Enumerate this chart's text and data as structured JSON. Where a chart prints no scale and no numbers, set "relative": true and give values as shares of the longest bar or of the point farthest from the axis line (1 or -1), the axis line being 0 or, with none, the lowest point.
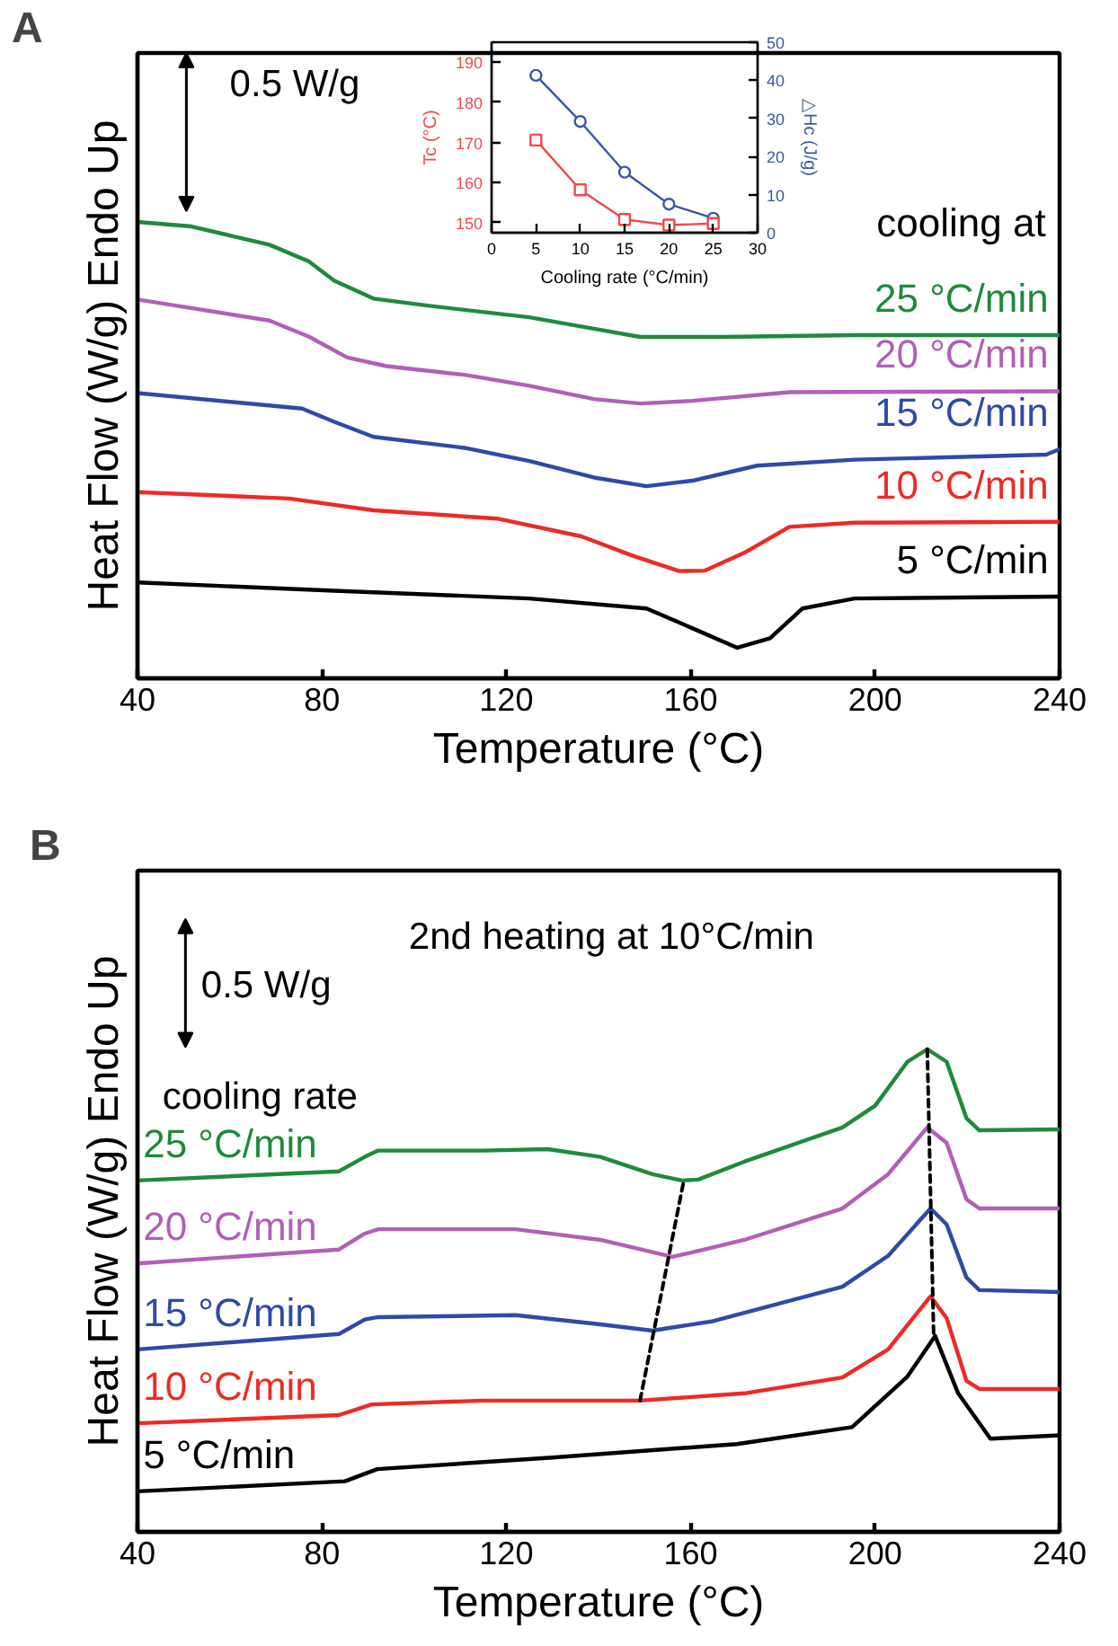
{
  "chart_data": [
    {
      "type": "line",
      "title": "A",
      "xlabel": "Temperature (°C)",
      "ylabel": "Heat Flow (W/g) Endo Up",
      "xlim": [
        40,
        240
      ],
      "xticks": [
        40,
        80,
        120,
        160,
        200,
        240
      ],
      "relative": true,
      "tick_labels": "x",
      "grid": false,
      "legend": false,
      "marker": "none",
      "line_style": "solid",
      "annotations": [
        "0.5 W/g",
        "cooling at"
      ],
      "series": [
        {
          "name": "25 °C/min",
          "color": "#1f8a3c",
          "x": [
            40,
            51.7,
            68.6,
            77.1,
            82.7,
            91.2,
            102.5,
            125,
            139,
            149,
            167,
            195.5,
            240
          ],
          "values": [
            1.0,
            0.99,
            0.95,
            0.914,
            0.871,
            0.832,
            0.817,
            0.791,
            0.766,
            0.748,
            0.748,
            0.752,
            0.752
          ]
        },
        {
          "name": "20 °C/min",
          "color": "#b15fb8",
          "x": [
            40,
            68.6,
            77.1,
            85.5,
            94,
            110.9,
            125,
            139,
            149,
            160.3,
            181.4,
            240
          ],
          "values": [
            0.83,
            0.784,
            0.749,
            0.703,
            0.684,
            0.665,
            0.641,
            0.612,
            0.602,
            0.608,
            0.627,
            0.629
          ]
        },
        {
          "name": "15 °C/min",
          "color": "#2e4aa8",
          "x": [
            40,
            75.7,
            82.7,
            91.2,
            110.9,
            125,
            139,
            150.4,
            160.3,
            174.4,
            195.5,
            237.1,
            240
          ],
          "values": [
            0.625,
            0.591,
            0.562,
            0.529,
            0.505,
            0.476,
            0.44,
            0.421,
            0.433,
            0.466,
            0.479,
            0.49,
            0.502
          ]
        },
        {
          "name": "10 °C/min",
          "color": "#ee2a24",
          "x": [
            40,
            72.9,
            91.2,
            118,
            136.3,
            147.6,
            157.5,
            163.1,
            171.6,
            181.4,
            195.5,
            240
          ],
          "values": [
            0.408,
            0.394,
            0.368,
            0.35,
            0.311,
            0.268,
            0.235,
            0.236,
            0.275,
            0.332,
            0.341,
            0.343
          ]
        },
        {
          "name": "5 °C/min",
          "color": "#000000",
          "x": [
            40,
            82.7,
            125,
            150.4,
            160.3,
            170.1,
            177.2,
            184.2,
            195.5,
            240
          ],
          "values": [
            0.21,
            0.192,
            0.175,
            0.153,
            0.11,
            0.067,
            0.088,
            0.153,
            0.175,
            0.179
          ]
        }
      ]
    },
    {
      "type": "line",
      "xlabel": "Cooling rate (°C/min)",
      "ylabel": "Tc (°C)",
      "y2label": "△Hc (J/g)",
      "xlim": [
        0,
        30
      ],
      "xticks": [
        0,
        5,
        10,
        15,
        20,
        25,
        30
      ],
      "ylim": [
        147.5,
        195
      ],
      "yticks": [
        150,
        160,
        170,
        180,
        190
      ],
      "y2lim": [
        0,
        50
      ],
      "y2ticks": [
        0,
        10,
        20,
        30,
        40,
        50
      ],
      "grid": false,
      "legend": false,
      "line_style": "solid",
      "series": [
        {
          "color": "#f04a4a",
          "marker": "square",
          "x": [
            5,
            10,
            15,
            20,
            25
          ],
          "values": [
            170.6,
            158.2,
            150.8,
            149.4,
            149.8
          ]
        },
        {
          "color": "#3a56a8",
          "marker": "circle",
          "axis": "y2",
          "x": [
            5,
            10,
            15,
            20,
            25
          ],
          "values": [
            41.3,
            29.2,
            15.9,
            7.5,
            3.8
          ]
        }
      ]
    },
    {
      "type": "line",
      "title": "B",
      "xlabel": "Temperature (°C)",
      "ylabel": "Heat Flow (W/g) Endo Up",
      "xlim": [
        40,
        240
      ],
      "xticks": [
        40,
        80,
        120,
        160,
        200,
        240
      ],
      "relative": true,
      "tick_labels": "x",
      "grid": false,
      "legend": false,
      "marker": "none",
      "line_style": "solid",
      "annotations": [
        "2nd heating at 10°C/min",
        "0.5 W/g",
        "cooling rate"
      ],
      "series": [
        {
          "name": "25 °C/min",
          "color": "#1f8a3c",
          "x": [
            40,
            83.7,
            89.3,
            92.2,
            114.9,
            129,
            140.4,
            151.7,
            158.1,
            161.6,
            171.6,
            192.9,
            200,
            207,
            211.3,
            215.5,
            219.8,
            222.6,
            240
          ],
          "values": [
            0.728,
            0.747,
            0.777,
            0.79,
            0.79,
            0.793,
            0.777,
            0.741,
            0.728,
            0.73,
            0.767,
            0.838,
            0.883,
            0.974,
            1.0,
            0.974,
            0.857,
            0.832,
            0.834
          ]
        },
        {
          "name": "20 °C/min",
          "color": "#b15fb8",
          "x": [
            40,
            83.7,
            89.3,
            92.2,
            122,
            140.4,
            156,
            163,
            171.6,
            192.9,
            202.8,
            211.3,
            215.5,
            219.8,
            222.6,
            240
          ],
          "values": [
            0.556,
            0.585,
            0.618,
            0.627,
            0.627,
            0.605,
            0.57,
            0.585,
            0.605,
            0.67,
            0.741,
            0.838,
            0.806,
            0.689,
            0.67,
            0.67
          ]
        },
        {
          "name": "15 °C/min",
          "color": "#2e4aa8",
          "x": [
            40,
            83.7,
            89.3,
            92.2,
            122,
            140.4,
            151.7,
            164.5,
            192.9,
            202.8,
            212,
            215.5,
            219.8,
            222.6,
            240
          ],
          "values": [
            0.378,
            0.41,
            0.44,
            0.445,
            0.449,
            0.43,
            0.417,
            0.436,
            0.508,
            0.572,
            0.67,
            0.637,
            0.527,
            0.501,
            0.497
          ]
        },
        {
          "name": "10 °C/min",
          "color": "#ee2a24",
          "x": [
            40,
            83.7,
            90.8,
            114.9,
            148.9,
            171.6,
            192.9,
            202.8,
            212,
            215.5,
            219.8,
            222.6,
            240
          ],
          "values": [
            0.225,
            0.242,
            0.264,
            0.272,
            0.272,
            0.287,
            0.32,
            0.378,
            0.488,
            0.443,
            0.313,
            0.296,
            0.296
          ]
        },
        {
          "name": "5 °C/min",
          "color": "#000000",
          "x": [
            40,
            85,
            92,
            130,
            170,
            195,
            207,
            213,
            218,
            225,
            240
          ],
          "values": [
            0.084,
            0.105,
            0.13,
            0.154,
            0.182,
            0.217,
            0.322,
            0.406,
            0.287,
            0.193,
            0.2
          ]
        },
        {
          "color": "#000000",
          "line_style": "dashed",
          "x": [
            149,
            158.5
          ],
          "values": [
            0.272,
            0.728
          ]
        },
        {
          "color": "#000000",
          "line_style": "dashed",
          "x": [
            211.3,
            212.7
          ],
          "values": [
            1.0,
            0.404
          ]
        }
      ]
    }
  ]
}
